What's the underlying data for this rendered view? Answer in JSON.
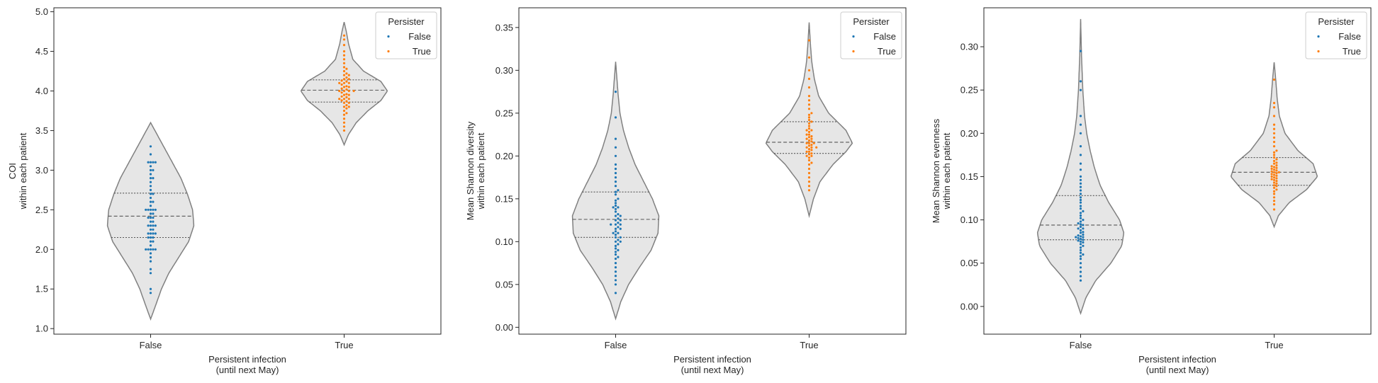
{
  "chart_data": [
    {
      "type": "violin",
      "xlabel": [
        "Persistent infection",
        "(until next May)"
      ],
      "ylabel": [
        "COI",
        "within each patient"
      ],
      "categories": [
        "False",
        "True"
      ],
      "ylim": [
        0.93,
        5.05
      ],
      "yticks": [
        "1.0",
        "1.5",
        "2.0",
        "2.5",
        "3.0",
        "3.5",
        "4.0",
        "4.5",
        "5.0"
      ],
      "ytick_values": [
        1.0,
        1.5,
        2.0,
        2.5,
        3.0,
        3.5,
        4.0,
        4.5,
        5.0
      ],
      "legend": {
        "title": "Persister",
        "entries": [
          "False",
          "True"
        ],
        "placement": "upper right"
      },
      "violins": [
        {
          "category": "False",
          "min": 1.12,
          "max": 3.6,
          "q1": 2.15,
          "median": 2.42,
          "q3": 2.71,
          "mode": 2.3,
          "profile": [
            [
              1.12,
              0.0
            ],
            [
              1.3,
              0.12
            ],
            [
              1.5,
              0.25
            ],
            [
              1.7,
              0.42
            ],
            [
              1.9,
              0.65
            ],
            [
              2.1,
              0.88
            ],
            [
              2.3,
              1.0
            ],
            [
              2.5,
              0.97
            ],
            [
              2.7,
              0.85
            ],
            [
              2.9,
              0.7
            ],
            [
              3.1,
              0.5
            ],
            [
              3.3,
              0.3
            ],
            [
              3.5,
              0.1
            ],
            [
              3.6,
              0.0
            ]
          ]
        },
        {
          "category": "True",
          "min": 3.32,
          "max": 4.87,
          "q1": 3.86,
          "median": 4.01,
          "q3": 4.14,
          "mode": 4.0,
          "profile": [
            [
              3.32,
              0.0
            ],
            [
              3.45,
              0.1
            ],
            [
              3.6,
              0.28
            ],
            [
              3.75,
              0.55
            ],
            [
              3.88,
              0.85
            ],
            [
              4.0,
              1.0
            ],
            [
              4.12,
              0.85
            ],
            [
              4.25,
              0.45
            ],
            [
              4.4,
              0.2
            ],
            [
              4.6,
              0.1
            ],
            [
              4.75,
              0.05
            ],
            [
              4.87,
              0.0
            ]
          ]
        }
      ],
      "points": [
        {
          "category": "False",
          "values": [
            1.45,
            1.5,
            1.7,
            1.75,
            1.85,
            1.9,
            1.95,
            2.0,
            2.0,
            2.0,
            2.0,
            2.0,
            2.05,
            2.1,
            2.1,
            2.15,
            2.15,
            2.15,
            2.2,
            2.2,
            2.2,
            2.2,
            2.25,
            2.25,
            2.3,
            2.3,
            2.3,
            2.3,
            2.35,
            2.35,
            2.4,
            2.4,
            2.4,
            2.45,
            2.45,
            2.5,
            2.5,
            2.5,
            2.5,
            2.5,
            2.55,
            2.6,
            2.6,
            2.65,
            2.7,
            2.7,
            2.75,
            2.8,
            2.85,
            2.9,
            2.9,
            2.95,
            3.0,
            3.0,
            3.05,
            3.1,
            3.1,
            3.1,
            3.1,
            3.2,
            3.3
          ]
        },
        {
          "category": "True",
          "values": [
            3.5,
            3.55,
            3.6,
            3.65,
            3.7,
            3.72,
            3.75,
            3.78,
            3.8,
            3.8,
            3.82,
            3.85,
            3.85,
            3.87,
            3.88,
            3.9,
            3.9,
            3.9,
            3.92,
            3.93,
            3.95,
            3.95,
            3.96,
            3.98,
            4.0,
            4.0,
            4.0,
            4.0,
            4.02,
            4.03,
            4.05,
            4.05,
            4.06,
            4.08,
            4.1,
            4.1,
            4.1,
            4.12,
            4.13,
            4.15,
            4.15,
            4.17,
            4.2,
            4.2,
            4.22,
            4.25,
            4.28,
            4.3,
            4.35,
            4.4,
            4.45,
            4.5,
            4.58,
            4.65,
            4.7
          ]
        }
      ]
    },
    {
      "type": "violin",
      "xlabel": [
        "Persistent infection",
        "(until next May)"
      ],
      "ylabel": [
        "Mean Shannon diversity",
        "within each patient"
      ],
      "categories": [
        "False",
        "True"
      ],
      "ylim": [
        -0.008,
        0.373
      ],
      "yticks": [
        "0.00",
        "0.05",
        "0.10",
        "0.15",
        "0.20",
        "0.25",
        "0.30",
        "0.35"
      ],
      "ytick_values": [
        0.0,
        0.05,
        0.1,
        0.15,
        0.2,
        0.25,
        0.3,
        0.35
      ],
      "legend": {
        "title": "Persister",
        "entries": [
          "False",
          "True"
        ],
        "placement": "upper right"
      },
      "violins": [
        {
          "category": "False",
          "min": 0.01,
          "max": 0.31,
          "q1": 0.105,
          "median": 0.126,
          "q3": 0.158,
          "mode": 0.12,
          "profile": [
            [
              0.01,
              0.0
            ],
            [
              0.03,
              0.12
            ],
            [
              0.05,
              0.3
            ],
            [
              0.07,
              0.55
            ],
            [
              0.09,
              0.82
            ],
            [
              0.11,
              0.98
            ],
            [
              0.13,
              1.0
            ],
            [
              0.15,
              0.85
            ],
            [
              0.17,
              0.65
            ],
            [
              0.19,
              0.45
            ],
            [
              0.21,
              0.3
            ],
            [
              0.23,
              0.18
            ],
            [
              0.25,
              0.1
            ],
            [
              0.27,
              0.06
            ],
            [
              0.29,
              0.03
            ],
            [
              0.31,
              0.0
            ]
          ]
        },
        {
          "category": "True",
          "min": 0.13,
          "max": 0.356,
          "q1": 0.203,
          "median": 0.216,
          "q3": 0.24,
          "mode": 0.215,
          "profile": [
            [
              0.13,
              0.0
            ],
            [
              0.15,
              0.1
            ],
            [
              0.17,
              0.25
            ],
            [
              0.19,
              0.55
            ],
            [
              0.205,
              0.85
            ],
            [
              0.215,
              1.0
            ],
            [
              0.23,
              0.85
            ],
            [
              0.25,
              0.45
            ],
            [
              0.27,
              0.22
            ],
            [
              0.29,
              0.12
            ],
            [
              0.31,
              0.06
            ],
            [
              0.33,
              0.03
            ],
            [
              0.356,
              0.0
            ]
          ]
        }
      ],
      "points": [
        {
          "category": "False",
          "values": [
            0.04,
            0.05,
            0.055,
            0.06,
            0.065,
            0.07,
            0.075,
            0.08,
            0.082,
            0.085,
            0.088,
            0.09,
            0.092,
            0.095,
            0.097,
            0.1,
            0.1,
            0.102,
            0.105,
            0.105,
            0.108,
            0.11,
            0.11,
            0.112,
            0.115,
            0.115,
            0.117,
            0.12,
            0.12,
            0.12,
            0.122,
            0.125,
            0.125,
            0.127,
            0.13,
            0.13,
            0.132,
            0.135,
            0.138,
            0.14,
            0.14,
            0.142,
            0.145,
            0.148,
            0.15,
            0.155,
            0.158,
            0.16,
            0.165,
            0.17,
            0.175,
            0.18,
            0.185,
            0.19,
            0.2,
            0.21,
            0.22,
            0.245,
            0.275
          ]
        },
        {
          "category": "True",
          "values": [
            0.16,
            0.165,
            0.17,
            0.175,
            0.18,
            0.185,
            0.19,
            0.192,
            0.195,
            0.198,
            0.2,
            0.2,
            0.202,
            0.203,
            0.205,
            0.205,
            0.207,
            0.208,
            0.21,
            0.21,
            0.21,
            0.212,
            0.213,
            0.215,
            0.215,
            0.215,
            0.217,
            0.218,
            0.22,
            0.22,
            0.222,
            0.223,
            0.225,
            0.225,
            0.228,
            0.23,
            0.23,
            0.232,
            0.235,
            0.238,
            0.24,
            0.242,
            0.245,
            0.248,
            0.25,
            0.255,
            0.26,
            0.265,
            0.27,
            0.28,
            0.29,
            0.3,
            0.315,
            0.335
          ]
        }
      ]
    },
    {
      "type": "violin",
      "xlabel": [
        "Persistent infection",
        "(until next May)"
      ],
      "ylabel": [
        "Mean Shannon evenness",
        "within each patient"
      ],
      "categories": [
        "False",
        "True"
      ],
      "ylim": [
        -0.032,
        0.345
      ],
      "yticks": [
        "0.00",
        "0.05",
        "0.10",
        "0.15",
        "0.20",
        "0.25",
        "0.30"
      ],
      "ytick_values": [
        0.0,
        0.05,
        0.1,
        0.15,
        0.2,
        0.25,
        0.3
      ],
      "legend": {
        "title": "Persister",
        "entries": [
          "False",
          "True"
        ],
        "placement": "upper right"
      },
      "violins": [
        {
          "category": "False",
          "min": -0.008,
          "max": 0.332,
          "q1": 0.077,
          "median": 0.094,
          "q3": 0.128,
          "mode": 0.085,
          "profile": [
            [
              -0.008,
              0.0
            ],
            [
              0.01,
              0.12
            ],
            [
              0.03,
              0.35
            ],
            [
              0.05,
              0.7
            ],
            [
              0.07,
              0.95
            ],
            [
              0.085,
              1.0
            ],
            [
              0.1,
              0.9
            ],
            [
              0.12,
              0.65
            ],
            [
              0.14,
              0.45
            ],
            [
              0.16,
              0.32
            ],
            [
              0.18,
              0.22
            ],
            [
              0.2,
              0.14
            ],
            [
              0.22,
              0.09
            ],
            [
              0.25,
              0.05
            ],
            [
              0.29,
              0.02
            ],
            [
              0.332,
              0.0
            ]
          ]
        },
        {
          "category": "True",
          "min": 0.092,
          "max": 0.282,
          "q1": 0.14,
          "median": 0.155,
          "q3": 0.172,
          "mode": 0.153,
          "profile": [
            [
              0.092,
              0.0
            ],
            [
              0.105,
              0.1
            ],
            [
              0.12,
              0.35
            ],
            [
              0.135,
              0.75
            ],
            [
              0.15,
              1.0
            ],
            [
              0.165,
              0.9
            ],
            [
              0.18,
              0.55
            ],
            [
              0.2,
              0.25
            ],
            [
              0.22,
              0.12
            ],
            [
              0.24,
              0.07
            ],
            [
              0.26,
              0.04
            ],
            [
              0.282,
              0.0
            ]
          ]
        }
      ],
      "points": [
        {
          "category": "False",
          "values": [
            0.03,
            0.035,
            0.04,
            0.045,
            0.05,
            0.055,
            0.058,
            0.06,
            0.062,
            0.065,
            0.068,
            0.07,
            0.072,
            0.074,
            0.075,
            0.076,
            0.077,
            0.078,
            0.079,
            0.08,
            0.08,
            0.081,
            0.082,
            0.083,
            0.085,
            0.086,
            0.088,
            0.09,
            0.09,
            0.092,
            0.094,
            0.095,
            0.096,
            0.098,
            0.1,
            0.102,
            0.105,
            0.108,
            0.11,
            0.113,
            0.116,
            0.12,
            0.123,
            0.126,
            0.13,
            0.134,
            0.138,
            0.142,
            0.146,
            0.15,
            0.158,
            0.165,
            0.175,
            0.185,
            0.2,
            0.21,
            0.22,
            0.25,
            0.26,
            0.295
          ]
        },
        {
          "category": "True",
          "values": [
            0.112,
            0.118,
            0.122,
            0.126,
            0.13,
            0.133,
            0.135,
            0.137,
            0.139,
            0.14,
            0.142,
            0.143,
            0.145,
            0.146,
            0.147,
            0.148,
            0.149,
            0.15,
            0.151,
            0.152,
            0.153,
            0.154,
            0.155,
            0.155,
            0.156,
            0.157,
            0.158,
            0.159,
            0.16,
            0.161,
            0.162,
            0.163,
            0.165,
            0.166,
            0.168,
            0.17,
            0.172,
            0.175,
            0.178,
            0.18,
            0.185,
            0.19,
            0.195,
            0.2,
            0.205,
            0.21,
            0.22,
            0.23,
            0.235,
            0.262
          ]
        }
      ]
    }
  ],
  "colors": {
    "false_points": "#1f77b4",
    "true_points": "#ff7f0e",
    "violin_fill": "#e6e6e6",
    "violin_edge": "#808080",
    "axis": "#262626"
  }
}
